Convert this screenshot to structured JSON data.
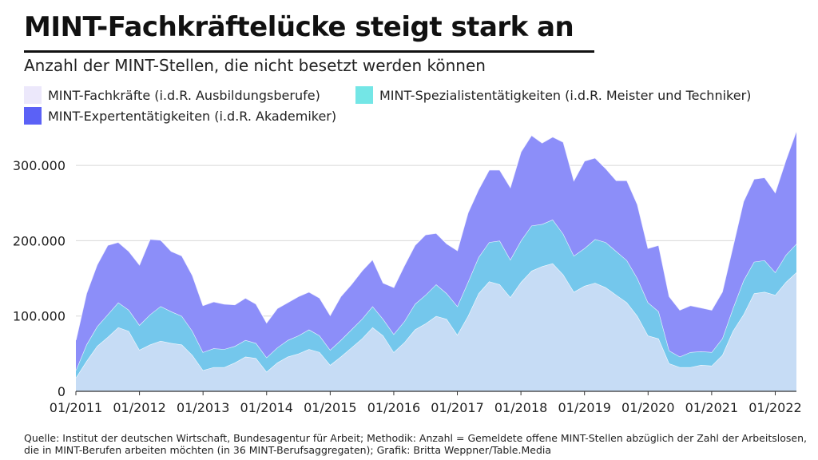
{
  "title": "MINT-Fachkräftelücke steigt stark an",
  "subtitle": "Anzahl der MINT-Stellen, die nicht besetzt werden können",
  "source": "Quelle: Institut der deutschen Wirtschaft, Bundesagentur für Arbeit; Methodik: Anzahl = Gemeldete offene MINT-Stellen abzüglich der Zahl der Arbeitslosen, die in MINT-Berufen arbeiten möchten (in 36 MINT-Berufsaggregaten); Grafik: Britta Weppner/Table.Media",
  "colors": {
    "fachkraefte": "#c6dcf5",
    "spezialisten": "#74c7ec",
    "experten": "#8c8ef9",
    "legend_fachkraefte": "#ece8fb",
    "legend_spezialisten": "#74e6e6",
    "legend_experten": "#5b61f6"
  },
  "chart_data": {
    "type": "area",
    "stacked": true,
    "title": "MINT-Fachkräftelücke steigt stark an",
    "subtitle": "Anzahl der MINT-Stellen, die nicht besetzt werden können",
    "ylim": [
      0,
      350000
    ],
    "yticks": [
      0,
      100000,
      200000,
      300000
    ],
    "ytick_labels": [
      "0",
      "100.000",
      "200.000",
      "300.000"
    ],
    "xticks": [
      "01/2011",
      "01/2012",
      "01/2013",
      "01/2014",
      "01/2015",
      "01/2016",
      "01/2017",
      "01/2018",
      "01/2019",
      "01/2020",
      "01/2021",
      "01/2022"
    ],
    "grid": true,
    "legend_position": "top",
    "x": [
      "01/2011",
      "03/2011",
      "05/2011",
      "07/2011",
      "09/2011",
      "11/2011",
      "01/2012",
      "03/2012",
      "05/2012",
      "07/2012",
      "09/2012",
      "11/2012",
      "01/2013",
      "03/2013",
      "05/2013",
      "07/2013",
      "09/2013",
      "11/2013",
      "01/2014",
      "03/2014",
      "05/2014",
      "07/2014",
      "09/2014",
      "11/2014",
      "01/2015",
      "03/2015",
      "05/2015",
      "07/2015",
      "09/2015",
      "11/2015",
      "01/2016",
      "03/2016",
      "05/2016",
      "07/2016",
      "09/2016",
      "11/2016",
      "01/2017",
      "03/2017",
      "05/2017",
      "07/2017",
      "09/2017",
      "11/2017",
      "01/2018",
      "03/2018",
      "05/2018",
      "07/2018",
      "09/2018",
      "11/2018",
      "01/2019",
      "03/2019",
      "05/2019",
      "07/2019",
      "09/2019",
      "11/2019",
      "01/2020",
      "03/2020",
      "05/2020",
      "07/2020",
      "09/2020",
      "11/2020",
      "01/2021",
      "03/2021",
      "05/2021",
      "07/2021",
      "09/2021",
      "11/2021",
      "01/2022",
      "03/2022",
      "05/2022"
    ],
    "series": [
      {
        "name": "MINT-Fachkräfte (i.d.R. Ausbildungsberufe)",
        "values": [
          18000,
          40000,
          60000,
          72000,
          85000,
          80000,
          55000,
          62000,
          67000,
          64000,
          62000,
          48000,
          28000,
          32000,
          32000,
          38000,
          46000,
          44000,
          26000,
          38000,
          46000,
          50000,
          56000,
          52000,
          35000,
          46000,
          58000,
          70000,
          85000,
          74000,
          52000,
          65000,
          82000,
          90000,
          100000,
          96000,
          75000,
          100000,
          130000,
          146000,
          142000,
          125000,
          145000,
          160000,
          166000,
          170000,
          155000,
          132000,
          140000,
          144000,
          138000,
          128000,
          118000,
          100000,
          74000,
          70000,
          37000,
          32000,
          32000,
          35000,
          34000,
          48000,
          80000,
          102000,
          130000,
          132000,
          128000,
          145000,
          158000
        ]
      },
      {
        "name": "MINT-Spezialistentätigkeiten (i.d.R. Meister und Techniker)",
        "values": [
          10000,
          22000,
          26000,
          30000,
          33000,
          28000,
          33000,
          40000,
          46000,
          42000,
          38000,
          32000,
          24000,
          25000,
          24000,
          22000,
          22000,
          20000,
          19000,
          20000,
          22000,
          24000,
          26000,
          22000,
          20000,
          22000,
          24000,
          26000,
          28000,
          22000,
          24000,
          28000,
          34000,
          38000,
          42000,
          34000,
          38000,
          45000,
          48000,
          52000,
          58000,
          50000,
          55000,
          60000,
          56000,
          58000,
          54000,
          48000,
          50000,
          58000,
          60000,
          58000,
          56000,
          50000,
          44000,
          36000,
          17000,
          14000,
          20000,
          18000,
          18000,
          22000,
          30000,
          45000,
          42000,
          42000,
          30000,
          36000,
          38000
        ]
      },
      {
        "name": "MINT-Expertentätigkeiten (i.d.R. Akademiker)",
        "values": [
          40000,
          68000,
          82000,
          92000,
          80000,
          78000,
          80000,
          100000,
          88000,
          80000,
          80000,
          74000,
          62000,
          62000,
          60000,
          55000,
          56000,
          52000,
          46000,
          52000,
          50000,
          52000,
          50000,
          50000,
          46000,
          58000,
          60000,
          64000,
          62000,
          48000,
          62000,
          74000,
          78000,
          80000,
          68000,
          66000,
          74000,
          92000,
          90000,
          96000,
          94000,
          96000,
          118000,
          120000,
          108000,
          110000,
          122000,
          100000,
          116000,
          108000,
          98000,
          94000,
          106000,
          98000,
          72000,
          88000,
          72000,
          62000,
          62000,
          58000,
          56000,
          62000,
          82000,
          105000,
          110000,
          110000,
          106000,
          126000,
          150000
        ]
      }
    ]
  }
}
